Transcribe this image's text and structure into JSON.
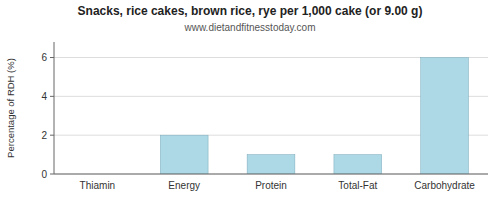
{
  "chart_data": {
    "type": "bar",
    "title": "Snacks, rice cakes, brown rice, rye per 1,000 cake (or 9.00 g)",
    "subtitle": "www.dietandfitnesstoday.com",
    "categories": [
      "Thiamin",
      "Energy",
      "Protein",
      "Total-Fat",
      "Carbohydrate"
    ],
    "values": [
      0,
      2.0,
      1.0,
      1.0,
      6.0
    ],
    "color": "#add8e6",
    "ylabel": "Percentage of RDH (%)",
    "ylim": [
      0,
      6.8
    ],
    "yticks": [
      0,
      2,
      4,
      6
    ],
    "grid": true
  }
}
